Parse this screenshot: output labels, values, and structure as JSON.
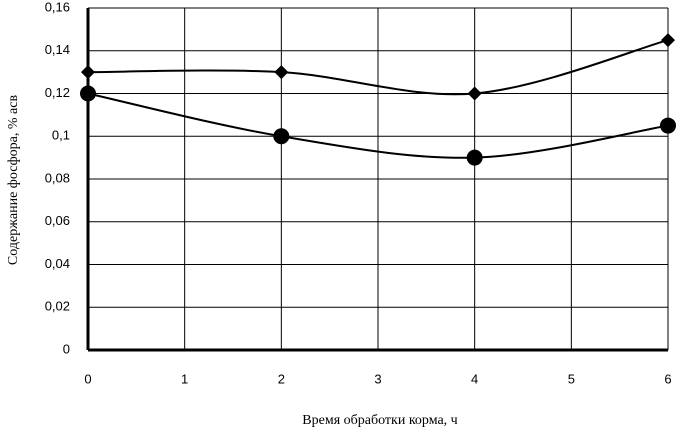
{
  "chart_data": {
    "type": "line",
    "smooth": true,
    "xlabel": "Время обработки корма, ч",
    "ylabel": "Содержание фосфора, % асв",
    "x": [
      0,
      2,
      4,
      6
    ],
    "series": [
      {
        "color": "#000000",
        "marker": "diamond",
        "values": [
          0.13,
          0.13,
          0.12,
          0.145
        ]
      },
      {
        "color": "#000000",
        "marker": "circle",
        "values": [
          0.12,
          0.1,
          0.09,
          0.105
        ]
      }
    ],
    "xlim": [
      0,
      6
    ],
    "xticks": [
      0,
      1,
      2,
      3,
      4,
      5,
      6
    ],
    "ylim": [
      0,
      0.16
    ],
    "yticks": [
      0,
      {
        "value": 0.02,
        "label": "0,02"
      },
      {
        "value": 0.04,
        "label": "0,04"
      },
      {
        "value": 0.06,
        "label": "0,06"
      },
      {
        "value": 0.08,
        "label": "0,08"
      },
      {
        "value": 0.1,
        "label": "0,1"
      },
      {
        "value": 0.12,
        "label": "0,12"
      },
      {
        "value": 0.14,
        "label": "0,14"
      },
      {
        "value": 0.16,
        "label": "0,16"
      }
    ],
    "grid": true
  }
}
